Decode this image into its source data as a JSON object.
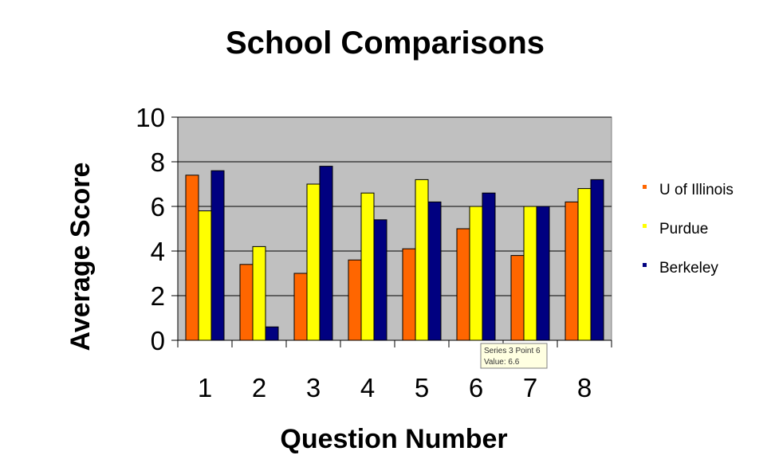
{
  "chart_data": {
    "type": "bar",
    "title": "School Comparisons",
    "xlabel": "Question Number",
    "ylabel": "Average Score",
    "categories": [
      "1",
      "2",
      "3",
      "4",
      "5",
      "6",
      "7",
      "8"
    ],
    "yticks": [
      "0",
      "2",
      "4",
      "6",
      "8",
      "10"
    ],
    "ylim": [
      0,
      10
    ],
    "grid": true,
    "legend_position": "right",
    "plot_background": "#c0c0c0",
    "series": [
      {
        "name": "U of Illinois",
        "color": "#ff6600",
        "values": [
          7.4,
          3.4,
          3.0,
          3.6,
          4.1,
          5.0,
          3.8,
          6.2
        ]
      },
      {
        "name": "Purdue",
        "color": "#ffff00",
        "values": [
          5.8,
          4.2,
          7.0,
          6.6,
          7.2,
          6.0,
          6.0,
          6.8
        ]
      },
      {
        "name": "Berkeley",
        "color": "#000080",
        "values": [
          7.6,
          0.6,
          7.8,
          5.4,
          6.2,
          6.6,
          6.0,
          7.2
        ]
      }
    ]
  },
  "tooltip": {
    "line1": "Series 3 Point 6",
    "line2": "Value: 6.6"
  }
}
